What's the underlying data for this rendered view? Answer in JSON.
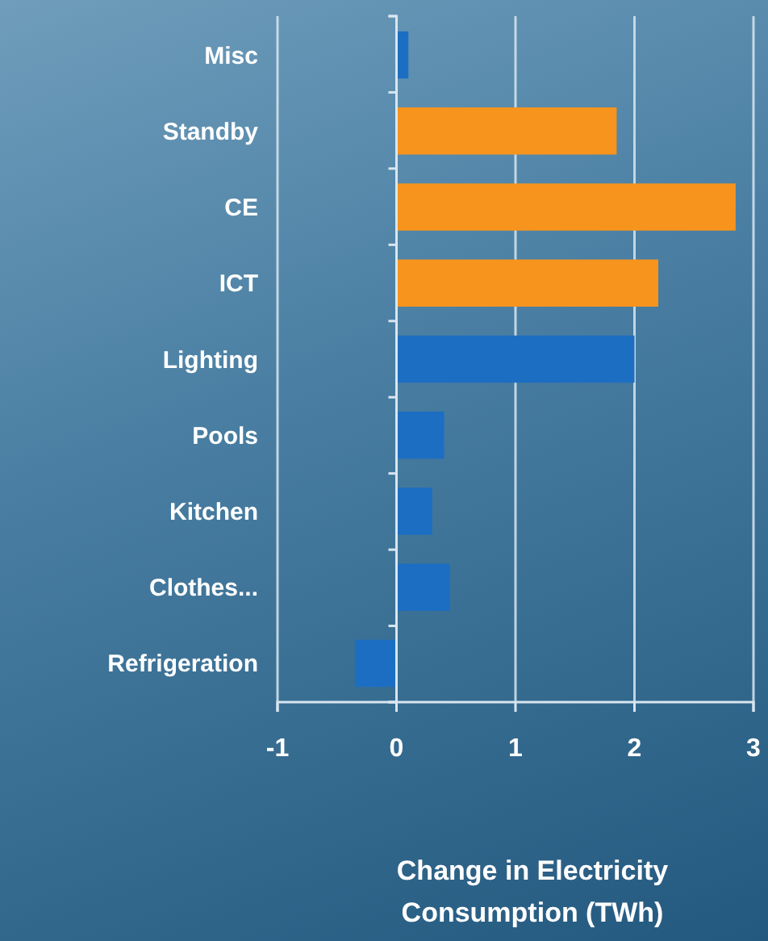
{
  "chart_data": {
    "type": "bar",
    "orientation": "horizontal",
    "xlabel": "Change in Electricity Consumption (TWh)",
    "categories": [
      "Misc",
      "Standby",
      "CE",
      "ICT",
      "Lighting",
      "Pools",
      "Kitchen",
      "Clothes...",
      "Refrigeration"
    ],
    "values": [
      0.1,
      1.85,
      2.85,
      2.2,
      2.0,
      0.4,
      0.3,
      0.45,
      -0.35
    ],
    "colors": [
      "#1c6ec2",
      "#f7941d",
      "#f7941d",
      "#f7941d",
      "#1c6ec2",
      "#1c6ec2",
      "#1c6ec2",
      "#1c6ec2",
      "#1c6ec2"
    ],
    "xlim": [
      -1,
      3
    ],
    "xticks": [
      -1,
      0,
      1,
      2,
      3
    ],
    "grid": "x"
  }
}
